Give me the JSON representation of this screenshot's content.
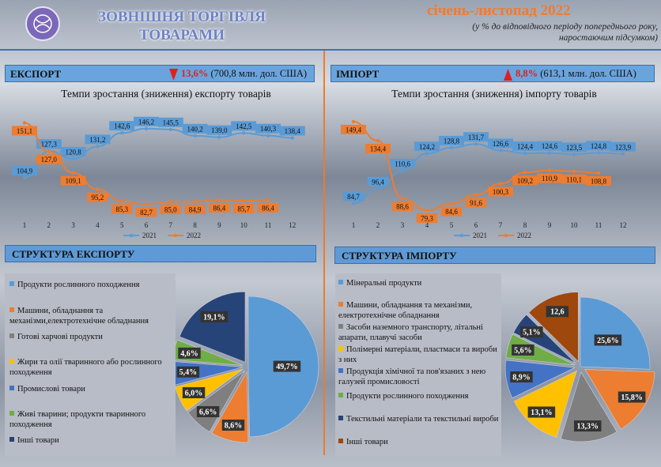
{
  "header": {
    "title_line1": "ЗОВНІШНЯ ТОРГІВЛЯ",
    "title_line2": "ТОВАРАМИ",
    "period": "січень-листопад 2022",
    "note": "(у % до відповідного періоду попереднього року, наростаючим підсумком)"
  },
  "export": {
    "label": "ЕКСПОРТ",
    "change": "13,6%",
    "amount": "(700,8 млн. дол. США)",
    "arrow": "down",
    "arrow_color": "#e02020",
    "chart_title": "Темпи зростання (зниження) експорту товарів",
    "structure_label": "СТРУКТУРА ЕКСПОРТУ"
  },
  "import": {
    "label": "ІМПОРТ",
    "change": "8,8%",
    "amount": "(613,1 млн. дол. США)",
    "arrow": "up",
    "arrow_color": "#e02020",
    "chart_title": "Темпи зростання (зниження) імпорту товарів",
    "structure_label": "СТРУКТУРА ІМПОРТУ"
  },
  "colors": {
    "s2021": "#5b9bd5",
    "s2022": "#ed7d31"
  },
  "chart_data": [
    {
      "type": "line",
      "title": "Темпи зростання (зниження) експорту товарів",
      "x": [
        "1",
        "2",
        "3",
        "4",
        "5",
        "6",
        "7",
        "8",
        "9",
        "10",
        "11",
        "12"
      ],
      "series": [
        {
          "name": "2021",
          "values": [
            104.9,
            127.3,
            120.8,
            131.2,
            142.6,
            146.2,
            145.5,
            140.2,
            139.0,
            142.5,
            140.3,
            138.4
          ],
          "labels": [
            "104,9",
            "127,3",
            "120,8",
            "131,2",
            "142,6",
            "146,2",
            "145,5",
            "140,2",
            "139,0",
            "142,5",
            "140,3",
            "138,4"
          ]
        },
        {
          "name": "2022",
          "values": [
            151.1,
            127.0,
            109.1,
            95.2,
            85.3,
            82.7,
            85.0,
            84.9,
            86.4,
            85.7,
            86.4,
            null
          ],
          "labels": [
            "151,1",
            "127,0",
            "109,1",
            "95,2",
            "85,3",
            "82,7",
            "85,0",
            "84,9",
            "86,4",
            "85,7",
            "86,4",
            null
          ]
        }
      ],
      "ylim": [
        75,
        160
      ]
    },
    {
      "type": "line",
      "title": "Темпи зростання (зниження) імпорту товарів",
      "x": [
        "1",
        "2",
        "3",
        "4",
        "5",
        "6",
        "7",
        "8",
        "9",
        "10",
        "11",
        "12"
      ],
      "series": [
        {
          "name": "2021",
          "values": [
            84.7,
            96.4,
            110.6,
            124.2,
            128.8,
            131.7,
            126.6,
            124.4,
            124.6,
            123.5,
            124.8,
            123.9
          ],
          "labels": [
            "84,7",
            "96,4",
            "110,6",
            "124,2",
            "128,8",
            "131,7",
            "126,6",
            "124,4",
            "124,6",
            "123,5",
            "124,8",
            "123,9"
          ]
        },
        {
          "name": "2022",
          "values": [
            149.4,
            134.4,
            88.6,
            79.3,
            84.6,
            91.6,
            100.3,
            109.2,
            110.9,
            110.1,
            108.8,
            null
          ],
          "labels": [
            "149,4",
            "134,4",
            "88,6",
            "79,3",
            "84,6",
            "91,6",
            "100,3",
            "109,2",
            "110,9",
            "110,1",
            "108,8",
            null
          ]
        }
      ],
      "ylim": [
        75,
        155
      ]
    },
    {
      "type": "pie",
      "title": "СТРУКТУРА ЕКСПОРТУ",
      "categories": [
        "Продукти рослинного походження",
        "Машини, обладнання та механізми,електротехнічне обладнання",
        "Готові харчові продукти",
        "Жири та олії тваринного або рослинного походження",
        "Промислові товари",
        "Живі тварини; продукти тваринного походження",
        "Інші товари"
      ],
      "values": [
        49.7,
        8.6,
        6.6,
        6.0,
        5.4,
        4.6,
        19.1
      ],
      "labels": [
        "49,7%",
        "8,6%",
        "6,6%",
        "6,0%",
        "5,4%",
        "4,6%",
        "19,1%"
      ],
      "colors": [
        "#5b9bd5",
        "#ed7d31",
        "#7f7f7f",
        "#ffc000",
        "#4472c4",
        "#70ad47",
        "#264478"
      ]
    },
    {
      "type": "pie",
      "title": "СТРУКТУРА ІМПОРТУ",
      "categories": [
        "Мінеральні продукти",
        "Машини, обладнання та механізми, електротехнічне обладнання",
        "Засоби наземного транспорту, літальні апарати, плавучі засоби",
        "Полімерні матеріали, пластмаси та вироби з них",
        "Продукція хімічної та пов'язаних з нею галузей промисловості",
        "Продукти рослинного походження",
        "Текстильні матеріали та текстильні вироби",
        "Інші товари"
      ],
      "values": [
        25.6,
        15.8,
        13.3,
        13.1,
        8.9,
        5.6,
        5.1,
        12.6
      ],
      "labels": [
        "25,6%",
        "15,8%",
        "13,3%",
        "13,1%",
        "8,9%",
        "5,6%",
        "5,1%",
        "12,6"
      ],
      "colors": [
        "#5b9bd5",
        "#ed7d31",
        "#7f7f7f",
        "#ffc000",
        "#4472c4",
        "#70ad47",
        "#264478",
        "#9e480e"
      ]
    }
  ]
}
